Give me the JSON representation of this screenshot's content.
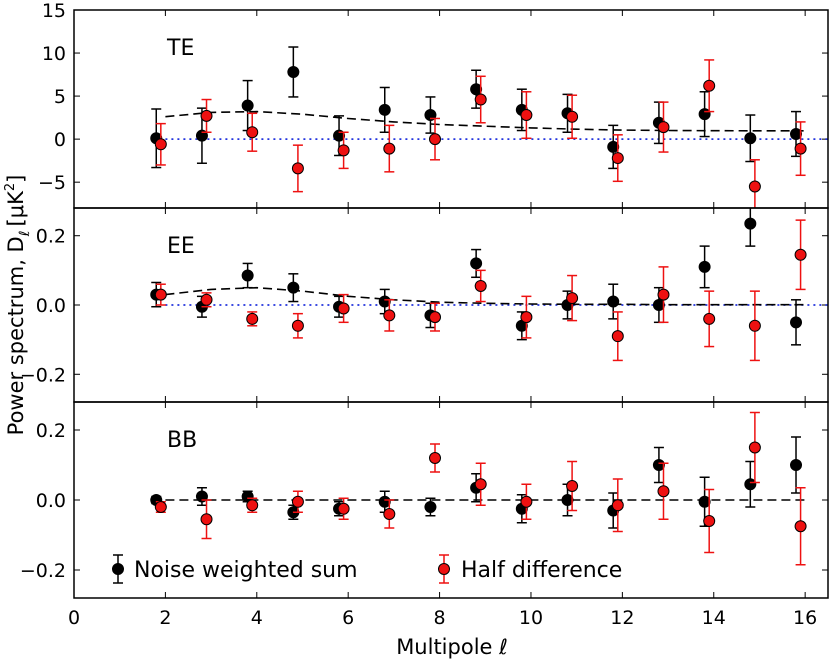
{
  "chart_data": {
    "type": "scatter",
    "xlabel": "Multipole ℓ",
    "ylabel_main": "Power spectrum, D",
    "ylabel_sub": "ℓ",
    "ylabel_unit": "[μK",
    "ylabel_sup": "2",
    "ylabel_close": "]",
    "xlim": [
      0,
      16.5
    ],
    "xticks": [
      "0",
      "2",
      "4",
      "6",
      "8",
      "10",
      "12",
      "14",
      "16"
    ],
    "legend": {
      "placement": "bottom",
      "entries": [
        {
          "name": "Noise weighted sum",
          "color": "#000000"
        },
        {
          "name": "Half difference",
          "color": "#ee1111"
        }
      ]
    },
    "panels": [
      {
        "label": "TE",
        "ylim": [
          -8,
          15
        ],
        "yticks": [
          -5,
          0,
          5,
          10,
          15
        ],
        "ytick_labels": [
          "−5",
          "0",
          "5",
          "10",
          "15"
        ],
        "model": {
          "l": [
            2,
            3,
            4,
            5,
            6,
            7,
            8,
            9,
            10,
            11,
            12,
            13,
            14,
            15,
            16
          ],
          "v": [
            2.6,
            3.1,
            3.2,
            2.9,
            2.4,
            2.0,
            1.7,
            1.5,
            1.3,
            1.15,
            1.05,
            1.0,
            0.98,
            0.97,
            0.97
          ]
        },
        "reference_zero": true,
        "sum": {
          "l": [
            1.8,
            2.8,
            3.8,
            4.8,
            5.8,
            6.8,
            7.8,
            8.8,
            9.8,
            10.8,
            11.8,
            12.8,
            13.8,
            14.8,
            15.8
          ],
          "v": [
            0.1,
            0.4,
            3.9,
            7.8,
            0.4,
            3.4,
            2.8,
            5.8,
            3.4,
            3.0,
            -0.9,
            1.9,
            2.9,
            0.1,
            0.6
          ],
          "e": [
            3.4,
            3.2,
            2.9,
            2.9,
            2.3,
            2.6,
            2.1,
            2.2,
            2.4,
            2.2,
            2.5,
            2.4,
            2.6,
            2.7,
            2.6
          ]
        },
        "half": {
          "l": [
            1.9,
            2.9,
            3.9,
            4.9,
            5.9,
            6.9,
            7.9,
            8.9,
            9.9,
            10.9,
            11.9,
            12.9,
            13.9,
            14.9,
            15.9
          ],
          "v": [
            -0.6,
            2.7,
            0.8,
            -3.4,
            -1.3,
            -1.1,
            0.0,
            4.6,
            2.8,
            2.6,
            -2.2,
            1.4,
            6.2,
            -5.5,
            -1.1
          ],
          "e": [
            2.4,
            1.9,
            2.2,
            2.7,
            2.1,
            2.7,
            2.4,
            2.7,
            2.7,
            2.5,
            2.7,
            2.9,
            3.0,
            3.1,
            3.1
          ]
        }
      },
      {
        "label": "EE",
        "ylim": [
          -0.28,
          0.28
        ],
        "yticks": [
          -0.2,
          0.0,
          0.2
        ],
        "ytick_labels": [
          "−0.2",
          "0.0",
          "0.2"
        ],
        "model": {
          "l": [
            2,
            3,
            4,
            5,
            6,
            7,
            8,
            9,
            10,
            11,
            12,
            13,
            14,
            15,
            16
          ],
          "v": [
            0.03,
            0.045,
            0.05,
            0.04,
            0.025,
            0.015,
            0.008,
            0.005,
            0.003,
            0.002,
            0.002,
            0.001,
            0.001,
            0.001,
            0.001
          ]
        },
        "reference_zero": true,
        "sum": {
          "l": [
            1.8,
            2.8,
            3.8,
            4.8,
            5.8,
            6.8,
            7.8,
            8.8,
            9.8,
            10.8,
            11.8,
            12.8,
            13.8,
            14.8,
            15.8
          ],
          "v": [
            0.03,
            -0.005,
            0.085,
            0.05,
            -0.005,
            0.01,
            -0.03,
            0.12,
            -0.06,
            0.0,
            0.01,
            0.0,
            0.11,
            0.235,
            -0.05
          ],
          "e": [
            0.035,
            0.03,
            0.035,
            0.04,
            0.03,
            0.035,
            0.035,
            0.04,
            0.04,
            0.04,
            0.05,
            0.05,
            0.06,
            0.065,
            0.065
          ]
        },
        "half": {
          "l": [
            1.9,
            2.9,
            3.9,
            4.9,
            5.9,
            6.9,
            7.9,
            8.9,
            9.9,
            10.9,
            11.9,
            12.9,
            13.9,
            14.9,
            15.9
          ],
          "v": [
            0.03,
            0.015,
            -0.04,
            -0.06,
            -0.01,
            -0.03,
            -0.035,
            0.055,
            -0.035,
            0.02,
            -0.09,
            0.03,
            -0.04,
            -0.06,
            0.145
          ],
          "e": [
            0.03,
            0.02,
            0.02,
            0.035,
            0.04,
            0.045,
            0.04,
            0.045,
            0.06,
            0.065,
            0.07,
            0.08,
            0.08,
            0.1,
            0.1
          ]
        }
      },
      {
        "label": "BB",
        "ylim": [
          -0.28,
          0.28
        ],
        "yticks": [
          -0.2,
          0.0,
          0.2
        ],
        "ytick_labels": [
          "−0.2",
          "0.0",
          "0.2"
        ],
        "model": {
          "l": [
            2,
            16
          ],
          "v": [
            0.0,
            0.0
          ]
        },
        "reference_zero": false,
        "sum": {
          "l": [
            1.8,
            2.8,
            3.8,
            4.8,
            5.8,
            6.8,
            7.8,
            8.8,
            9.8,
            10.8,
            11.8,
            12.8,
            13.8,
            14.8,
            15.8
          ],
          "v": [
            0.0,
            0.01,
            0.01,
            -0.035,
            -0.025,
            -0.005,
            -0.02,
            0.035,
            -0.025,
            0.0,
            -0.03,
            0.1,
            -0.005,
            0.045,
            0.1
          ],
          "e": [
            0.01,
            0.025,
            0.015,
            0.02,
            0.02,
            0.03,
            0.025,
            0.04,
            0.04,
            0.045,
            0.05,
            0.05,
            0.07,
            0.065,
            0.08
          ]
        },
        "half": {
          "l": [
            1.9,
            2.9,
            3.9,
            4.9,
            5.9,
            6.9,
            7.9,
            8.9,
            9.9,
            10.9,
            11.9,
            12.9,
            13.9,
            14.9,
            15.9
          ],
          "v": [
            -0.02,
            -0.055,
            -0.015,
            -0.005,
            -0.025,
            -0.04,
            0.12,
            0.045,
            -0.005,
            0.04,
            -0.015,
            0.025,
            -0.06,
            0.15,
            -0.075
          ],
          "e": [
            0.015,
            0.055,
            0.02,
            0.03,
            0.03,
            0.04,
            0.04,
            0.06,
            0.05,
            0.07,
            0.075,
            0.08,
            0.09,
            0.1,
            0.11
          ]
        }
      }
    ]
  }
}
